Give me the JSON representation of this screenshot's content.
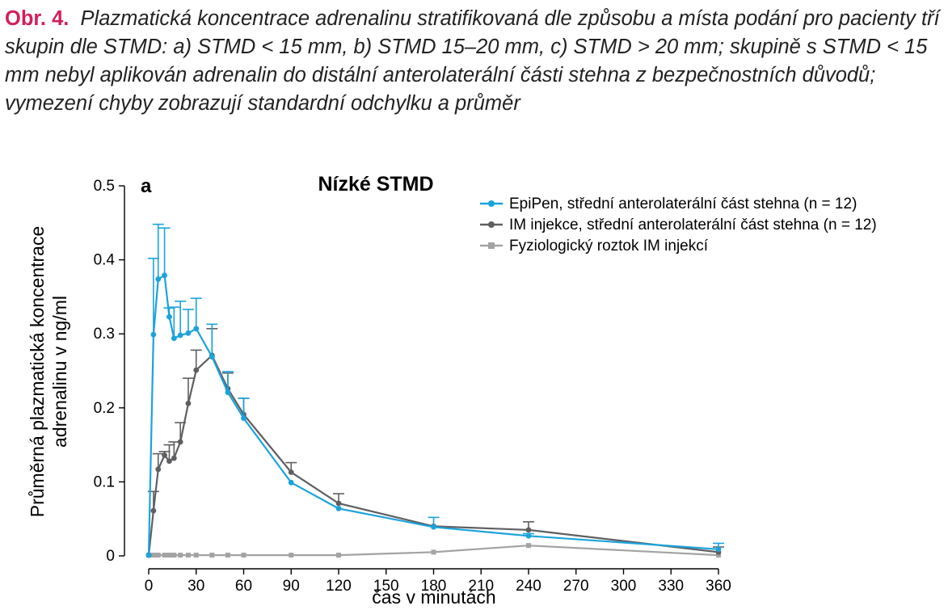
{
  "caption": {
    "label": "Obr. 4.",
    "text": "Plazmatická koncentrace adrenalinu stratifikovaná dle způsobu a místa podání pro pacienty tří skupin dle STMD: a) STMD < 15 mm, b) STMD 15–20 mm, c) STMD > 20 mm; skupině s STMD < 15 mm nebyl aplikován adrenalin do distální anterolaterální části stehna z bezpečnostních důvodů; vymezení chyby zobrazují standardní odchylku a průměr"
  },
  "chart_data": {
    "type": "line",
    "title": "Nízké STMD",
    "panel_label": "a",
    "xlabel": "čas v minutách",
    "ylabel_lines": [
      "Průměrná plazmatická koncentrace",
      "adrenalinu v ng/ml"
    ],
    "xlim": [
      0,
      360
    ],
    "ylim": [
      0,
      0.5
    ],
    "xticks": [
      0,
      30,
      60,
      90,
      120,
      150,
      180,
      210,
      240,
      270,
      300,
      330,
      360
    ],
    "yticks": [
      0,
      0.1,
      0.2,
      0.3,
      0.4,
      0.5
    ],
    "ytick_labels": [
      "0",
      "0.1",
      "0.2",
      "0.3",
      "0.4",
      "0.5"
    ],
    "legend_position": "top-right",
    "series": [
      {
        "name": "EpiPen, střední anterolaterální část stehna (n = 12)",
        "color": "#1ba3dc",
        "marker": "circle",
        "x": [
          0,
          3,
          6,
          10,
          13,
          16,
          20,
          25,
          30,
          40,
          50,
          60,
          90,
          120,
          180,
          240,
          360
        ],
        "y": [
          0.001,
          0.299,
          0.374,
          0.379,
          0.323,
          0.294,
          0.298,
          0.301,
          0.307,
          0.269,
          0.221,
          0.186,
          0.099,
          0.064,
          0.039,
          0.027,
          0.009
        ],
        "err": [
          0,
          0.103,
          0.074,
          0.064,
          0.012,
          0.042,
          0.046,
          0.032,
          0.041,
          0.044,
          0.028,
          0.027,
          0.0,
          0.0,
          0.013,
          0.003,
          0.008
        ]
      },
      {
        "name": "IM injekce, střední anterolaterální část stehna (n = 12)",
        "color": "#5f5f62",
        "marker": "circle",
        "x": [
          0,
          3,
          6,
          10,
          13,
          16,
          20,
          25,
          30,
          40,
          50,
          60,
          90,
          120,
          180,
          240,
          360
        ],
        "y": [
          0.001,
          0.061,
          0.117,
          0.136,
          0.128,
          0.132,
          0.154,
          0.206,
          0.251,
          0.271,
          0.226,
          0.191,
          0.113,
          0.071,
          0.04,
          0.035,
          0.005
        ],
        "err": [
          0,
          0.026,
          0.021,
          0.005,
          0.022,
          0.022,
          0.026,
          0.034,
          0.027,
          0.036,
          0.021,
          0.022,
          0.013,
          0.013,
          0.0,
          0.011,
          0.007
        ]
      },
      {
        "name": "Fyziologický roztok IM injekcí",
        "color": "#a3a3a3",
        "marker": "square",
        "x": [
          0,
          3,
          6,
          10,
          13,
          16,
          20,
          25,
          30,
          40,
          50,
          60,
          90,
          120,
          180,
          240,
          360
        ],
        "y": [
          0.001,
          0.001,
          0.001,
          0.001,
          0.001,
          0.001,
          0.001,
          0.001,
          0.001,
          0.001,
          0.001,
          0.001,
          0.001,
          0.001,
          0.005,
          0.014,
          0.001
        ],
        "err": [
          0,
          0,
          0,
          0,
          0,
          0,
          0,
          0,
          0,
          0,
          0,
          0,
          0,
          0,
          0,
          0,
          0
        ]
      }
    ]
  }
}
